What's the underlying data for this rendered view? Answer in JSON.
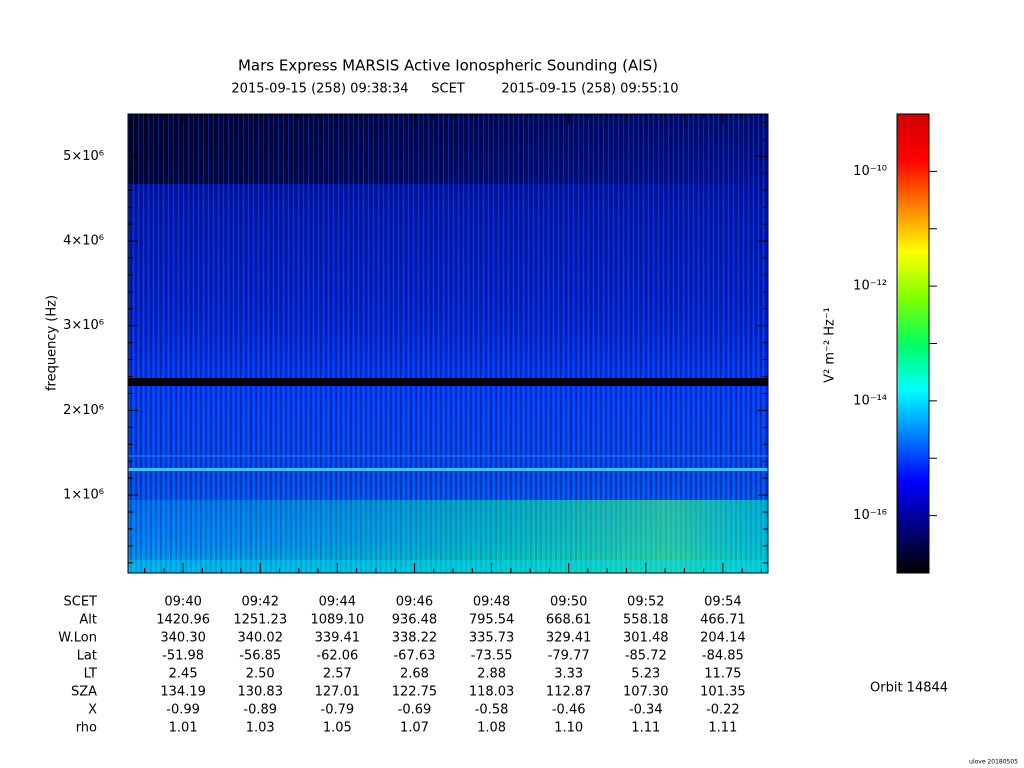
{
  "chart_data": {
    "type": "spectrogram",
    "title": "Mars Express MARSIS Active Ionospheric Sounding (AIS)",
    "subtitle_start": "2015-09-15 (258) 09:38:34",
    "subtitle_scale": "SCET",
    "subtitle_end": "2015-09-15 (258) 09:55:10",
    "y_label": "frequency (Hz)",
    "ylim": [
      80000,
      5500000
    ],
    "yticks": [
      {
        "value": 1000000,
        "label": "1×10⁶"
      },
      {
        "value": 2000000,
        "label": "2×10⁶"
      },
      {
        "value": 3000000,
        "label": "3×10⁶"
      },
      {
        "value": 4000000,
        "label": "4×10⁶"
      },
      {
        "value": 5000000,
        "label": "5×10⁶"
      }
    ],
    "xlim": [
      578.57,
      595.17
    ],
    "xticks": [
      {
        "value": 580,
        "label": "09:40"
      },
      {
        "value": 582,
        "label": "09:42"
      },
      {
        "value": 584,
        "label": "09:44"
      },
      {
        "value": 586,
        "label": "09:46"
      },
      {
        "value": 588,
        "label": "09:48"
      },
      {
        "value": 590,
        "label": "09:50"
      },
      {
        "value": 592,
        "label": "09:52"
      },
      {
        "value": 594,
        "label": "09:54"
      }
    ],
    "ephemeris": {
      "scet_label": "SCET",
      "rows": [
        {
          "label": "Alt",
          "values": [
            "1420.96",
            "1251.23",
            "1089.10",
            "936.48",
            "795.54",
            "668.61",
            "558.18",
            "466.71"
          ]
        },
        {
          "label": "W.Lon",
          "values": [
            "340.30",
            "340.02",
            "339.41",
            "338.22",
            "335.73",
            "329.41",
            "301.48",
            "204.14"
          ]
        },
        {
          "label": "Lat",
          "values": [
            "-51.98",
            "-56.85",
            "-62.06",
            "-67.63",
            "-73.55",
            "-79.77",
            "-85.72",
            "-84.85"
          ]
        },
        {
          "label": "LT",
          "values": [
            "2.45",
            "2.50",
            "2.57",
            "2.68",
            "2.88",
            "3.33",
            "5.23",
            "11.75"
          ]
        },
        {
          "label": "SZA",
          "values": [
            "134.19",
            "130.83",
            "127.01",
            "122.75",
            "118.03",
            "112.87",
            "107.30",
            "101.35"
          ]
        },
        {
          "label": "X",
          "values": [
            "-0.99",
            "-0.89",
            "-0.79",
            "-0.69",
            "-0.58",
            "-0.46",
            "-0.34",
            "-0.22"
          ]
        },
        {
          "label": "rho",
          "values": [
            "1.01",
            "1.03",
            "1.05",
            "1.07",
            "1.08",
            "1.10",
            "1.11",
            "1.11"
          ]
        }
      ]
    },
    "colorbar": {
      "label": "V² m⁻² Hz⁻¹",
      "log": true,
      "lim": [
        1e-17,
        1e-09
      ],
      "ticks": [
        {
          "value": 1e-16,
          "label": "10⁻¹⁶"
        },
        {
          "value": 1e-15,
          "label": ""
        },
        {
          "value": 1e-14,
          "label": "10⁻¹⁴"
        },
        {
          "value": 1e-13,
          "label": ""
        },
        {
          "value": 1e-12,
          "label": "10⁻¹²"
        },
        {
          "value": 1e-11,
          "label": ""
        },
        {
          "value": 1e-10,
          "label": "10⁻¹⁰"
        }
      ],
      "colors": [
        "#000000",
        "#000080",
        "#0000ff",
        "#0080ff",
        "#00ffff",
        "#00ff60",
        "#80ff00",
        "#ffff00",
        "#ff8000",
        "#ff0000",
        "#d00000"
      ]
    },
    "orbit": "Orbit 14844",
    "footer": "ulove 20180505"
  }
}
